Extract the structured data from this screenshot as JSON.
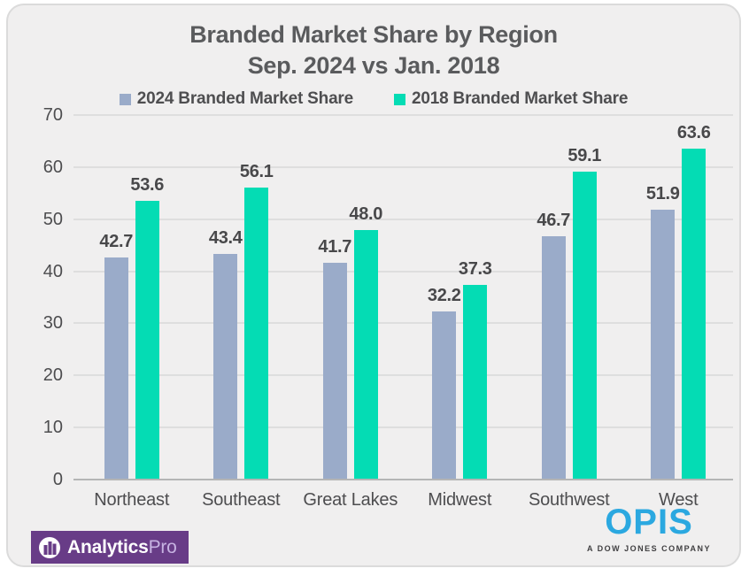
{
  "title": {
    "line1": "Branded Market Share by Region",
    "line2": "Sep. 2024 vs Jan. 2018"
  },
  "chart_data": {
    "type": "bar",
    "title": "Branded Market Share by Region Sep. 2024 vs Jan. 2018",
    "categories": [
      "Northeast",
      "Southeast",
      "Great Lakes",
      "Midwest",
      "Southwest",
      "West"
    ],
    "series": [
      {
        "name": "2024 Branded Market Share",
        "color": "#9aabc9",
        "values": [
          42.7,
          43.4,
          41.7,
          32.2,
          46.7,
          51.9
        ]
      },
      {
        "name": "2018 Branded Market Share",
        "color": "#04dcb4",
        "values": [
          53.6,
          56.1,
          48.0,
          37.3,
          59.1,
          63.6
        ]
      }
    ],
    "xlabel": "",
    "ylabel": "",
    "ylim": [
      0,
      70
    ],
    "yticks": [
      0,
      10,
      20,
      30,
      40,
      50,
      60,
      70
    ],
    "grid": true,
    "legend_position": "top",
    "value_label_decimals": 1
  },
  "branding": {
    "analytics_bold": "Analytics",
    "analytics_light": "Pro",
    "opis_word": "OPIS",
    "opis_tagline": "A DOW JONES COMPANY"
  },
  "colors": {
    "page_bg": "#ffffff",
    "card_bg": "#f0efef",
    "card_border": "#dbdbdb",
    "grid": "#dedede",
    "axis": "#b5b5b5",
    "text_dark": "#5a5b5d",
    "text_axis": "#4d4d4f",
    "value_label": "#48484a",
    "series_2024": "#9aabc9",
    "series_2018": "#04dcb4",
    "brand_purple": "#683c87",
    "brand_pro": "#c7b3e2",
    "opis_blue": "#2ba8e0",
    "tagline": "#414042"
  }
}
